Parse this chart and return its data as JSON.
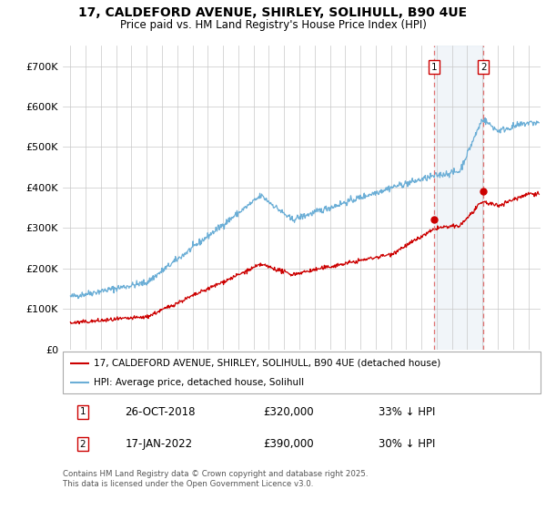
{
  "title_line1": "17, CALDEFORD AVENUE, SHIRLEY, SOLIHULL, B90 4UE",
  "title_line2": "Price paid vs. HM Land Registry's House Price Index (HPI)",
  "ylim": [
    0,
    750000
  ],
  "yticks": [
    0,
    100000,
    200000,
    300000,
    400000,
    500000,
    600000,
    700000
  ],
  "ytick_labels": [
    "£0",
    "£100K",
    "£200K",
    "£300K",
    "£400K",
    "£500K",
    "£600K",
    "£700K"
  ],
  "hpi_color": "#6baed6",
  "price_color": "#cc0000",
  "marker1_x": 2018.82,
  "marker2_x": 2022.05,
  "marker1_price": 320000,
  "marker2_price": 390000,
  "sale1_label": "26-OCT-2018",
  "sale1_price": "£320,000",
  "sale1_pct": "33% ↓ HPI",
  "sale2_label": "17-JAN-2022",
  "sale2_price": "£390,000",
  "sale2_pct": "30% ↓ HPI",
  "legend_red": "17, CALDEFORD AVENUE, SHIRLEY, SOLIHULL, B90 4UE (detached house)",
  "legend_blue": "HPI: Average price, detached house, Solihull",
  "footnote": "Contains HM Land Registry data © Crown copyright and database right 2025.\nThis data is licensed under the Open Government Licence v3.0.",
  "bg_shade_color": "#dce6f1",
  "shade_alpha": 0.4,
  "xmin": 1994.5,
  "xmax": 2025.8
}
